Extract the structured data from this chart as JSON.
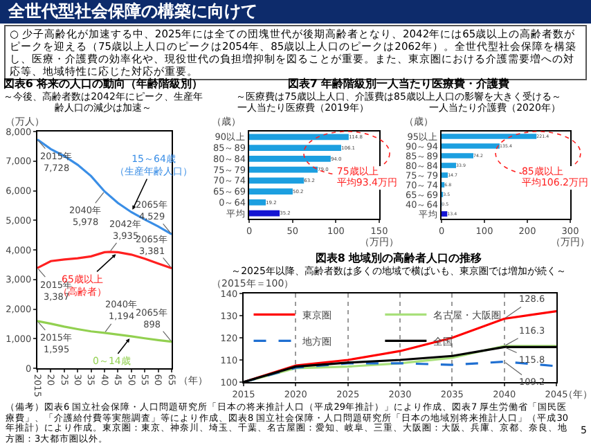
{
  "chart_data": [
    {
      "type": "other",
      "title": "全世代型社会保障の構築に向けて",
      "annotations": [
        "○ 少子高齢化が加速する中、2025年には全ての団塊世代が後期高齢者となり、2042年には65歳以上の高齢者数がピークを迎える（75歳以上人口のピークは2054年、85歳以上人口のピークは2062年）。全世代型社会保障を構築し、医療・介護費の効率化や、現役世代の負担増抑制を図ることが重要。また、東京圏における介護需要増への対応等、地域特性に応じた対応が重要。",
        "（備考）図表6 国立社会保障・人口問題研究所「日本の将来推計人口（平成29年推計）」により作成、図表7 厚生労働省「国民医療費」、「介護給付費等実態調査」等により作成、図表8 国立社会保障・人口問題研究所「日本の地域別将来推計人口」（平成30年推計）により作成。東京圏：東京、神奈川、埼玉、千葉、名古屋圏：愛知、岐阜、三重、大阪圏：大阪、兵庫、京都、奈良、地方圏：3大都市圏以外。",
        "5"
      ]
    },
    {
      "type": "line",
      "title": "図表6 将来の人口の動向（年齢階級別）",
      "subtitle": "～今後、高齢者数は2042年にピーク、生産年齢人口の減少は加速～",
      "xlabel": "（年）",
      "ylabel": "（万人）",
      "xlim": [
        2015,
        2065
      ],
      "ylim": [
        0,
        8000
      ],
      "xticks": [
        {
          "value": 2015,
          "label": "2015"
        },
        {
          "value": 2020,
          "label": "20"
        },
        {
          "value": 2025,
          "label": "25"
        },
        {
          "value": 2030,
          "label": "30"
        },
        {
          "value": 2035,
          "label": "35"
        },
        {
          "value": 2040,
          "label": "40"
        },
        {
          "value": 2045,
          "label": "45"
        },
        {
          "value": 2050,
          "label": "50"
        },
        {
          "value": 2055,
          "label": "55"
        },
        {
          "value": 2060,
          "label": "60"
        },
        {
          "value": 2065,
          "label": "65"
        }
      ],
      "yticks": [
        0,
        {
          "value": 1000,
          "label": "1,000"
        },
        {
          "value": 2000,
          "label": "2,000"
        },
        {
          "value": 3000,
          "label": "3,000"
        },
        {
          "value": 4000,
          "label": "4,000"
        },
        {
          "value": 5000,
          "label": "5,000"
        },
        {
          "value": 6000,
          "label": "6,000"
        },
        {
          "value": 7000,
          "label": "7,000"
        },
        {
          "value": 8000,
          "label": "8,000"
        }
      ],
      "series": [
        {
          "name": "15～64歳（生産年齢人口）",
          "color": "#3a8ee6",
          "x": [
            2015,
            2020,
            2025,
            2030,
            2035,
            2040,
            2045,
            2050,
            2055,
            2060,
            2065
          ],
          "values": [
            7728,
            7406,
            7170,
            6875,
            6494,
            5978,
            5584,
            5275,
            5028,
            4793,
            4529
          ]
        },
        {
          "name": "65歳以上（高齢者）",
          "color": "#ff2020",
          "x": [
            2015,
            2020,
            2025,
            2030,
            2035,
            2040,
            2042,
            2045,
            2050,
            2055,
            2060,
            2065
          ],
          "values": [
            3387,
            3619,
            3677,
            3716,
            3782,
            3921,
            3935,
            3919,
            3841,
            3704,
            3540,
            3381
          ]
        },
        {
          "name": "0～14歳",
          "color": "#92d050",
          "x": [
            2015,
            2020,
            2025,
            2030,
            2035,
            2040,
            2045,
            2050,
            2055,
            2060,
            2065
          ],
          "values": [
            1595,
            1507,
            1407,
            1321,
            1246,
            1194,
            1138,
            1077,
            1012,
            951,
            898
          ]
        }
      ],
      "annotations": [
        {
          "text": "2015年\n7,728",
          "x": 2015,
          "y": 7728
        },
        {
          "text": "2040年\n5,978",
          "x": 2040,
          "y": 5978
        },
        {
          "text": "2065年\n4,529",
          "x": 2065,
          "y": 4529
        },
        {
          "text": "2015年\n3,387",
          "x": 2015,
          "y": 3387
        },
        {
          "text": "2042年\n3,935",
          "x": 2042,
          "y": 3935
        },
        {
          "text": "2065年\n3,381",
          "x": 2065,
          "y": 3381
        },
        {
          "text": "2015年\n1,595",
          "x": 2015,
          "y": 1595
        },
        {
          "text": "2040年\n1,194",
          "x": 2040,
          "y": 1194
        },
        {
          "text": "2065年\n898",
          "x": 2065,
          "y": 898
        }
      ]
    },
    {
      "type": "bar",
      "orientation": "horizontal",
      "title": "図表7 年齢階級別一人当たり医療費・介護費",
      "subtitle": "～医療費は75歳以上人口、介護費は85歳以上人口の影響を大きく受ける～",
      "xlabel": "（万円）",
      "ylabel": "（歳）",
      "categories": [
        "90以上",
        "85～89",
        "80～84",
        "75～79",
        "70～74",
        "65～69",
        "0～64",
        "平均"
      ],
      "values": [
        114.8,
        106.1,
        94.0,
        79.0,
        63.2,
        50.2,
        19.2,
        35.2
      ],
      "value_labels": [
        "114.8",
        "106.1",
        "94.0",
        "79.0",
        "63.2",
        "50.2",
        "19.2",
        "35.2"
      ],
      "colors": [
        "#1c9fe0",
        "#1c9fe0",
        "#1c9fe0",
        "#1c9fe0",
        "#1c9fe0",
        "#1c9fe0",
        "#1c9fe0",
        "#1414d2"
      ],
      "xlim": [
        0,
        150
      ],
      "xticks": [
        0,
        50,
        100,
        150
      ],
      "annotations": [
        "一人当たり医療費（2019年）",
        "75歳以上",
        "平均93.4万円"
      ]
    },
    {
      "type": "bar",
      "orientation": "horizontal",
      "title": "一人当たり介護費（2020年）",
      "xlabel": "（万円）",
      "ylabel": "（歳）",
      "categories": [
        "95以上",
        "90～94",
        "85～89",
        "80～84",
        "75～79",
        "70～74",
        "65～69",
        "40～64",
        "平均"
      ],
      "values": [
        221.4,
        135.4,
        74.2,
        33.9,
        14.7,
        6.8,
        3.5,
        0.5,
        13.4
      ],
      "value_labels": [
        "221.4",
        "135.4",
        "74.2",
        "33.9",
        "14.7",
        "6.8",
        "3.5",
        "0.5",
        "13.4"
      ],
      "colors": [
        "#1c9fe0",
        "#1c9fe0",
        "#1c9fe0",
        "#1c9fe0",
        "#1c9fe0",
        "#1c9fe0",
        "#1c9fe0",
        "#1c9fe0",
        "#1414d2"
      ],
      "xlim": [
        0,
        300
      ],
      "xticks": [
        0,
        100,
        200,
        300
      ],
      "annotations": [
        "85歳以上",
        "平均106.2万円"
      ]
    },
    {
      "type": "line",
      "title": "図表8 地域別の高齢者人口の推移",
      "subtitle": "～2025年以降、高齢者数は多くの地域で横ばいも、東京圏では増加が続く～",
      "xlabel": "（年）",
      "ylabel": "（2015年＝100）",
      "x": [
        2015,
        2020,
        2025,
        2030,
        2035,
        2040,
        2045
      ],
      "xlim": [
        2015,
        2045
      ],
      "xticks": [
        2015,
        2020,
        2025,
        2030,
        2035,
        2040,
        2045
      ],
      "ylim": [
        100,
        140
      ],
      "yticks": [
        100,
        110,
        120,
        130,
        140
      ],
      "grid": "x",
      "legend": "top left",
      "series": [
        {
          "name": "東京圏",
          "color": "#ff0000",
          "line_style": "solid",
          "values": [
            100,
            107.5,
            110,
            114,
            120,
            128.6,
            132
          ]
        },
        {
          "name": "名古屋・大阪圏",
          "color": "#a8e07a",
          "line_style": "solid",
          "values": [
            100,
            106.3,
            107,
            108.5,
            111,
            116.3,
            116.3
          ]
        },
        {
          "name": "地方圏",
          "color": "#1f6fd1",
          "line_style": "dashed",
          "values": [
            100,
            106.5,
            108.5,
            108.5,
            107.8,
            109.2,
            107.2
          ]
        },
        {
          "name": "全国",
          "color": "#000000",
          "line_style": "solid",
          "values": [
            100,
            107,
            108.8,
            110,
            111.8,
            115.8,
            115.8
          ]
        }
      ],
      "annotations": [
        {
          "text": "128.6",
          "x": 2040,
          "y": 128.6
        },
        {
          "text": "116.3",
          "x": 2040,
          "y": 116.3
        },
        {
          "text": "115.8",
          "x": 2040,
          "y": 115.8
        },
        {
          "text": "109.2",
          "x": 2040,
          "y": 109.2
        }
      ]
    }
  ]
}
